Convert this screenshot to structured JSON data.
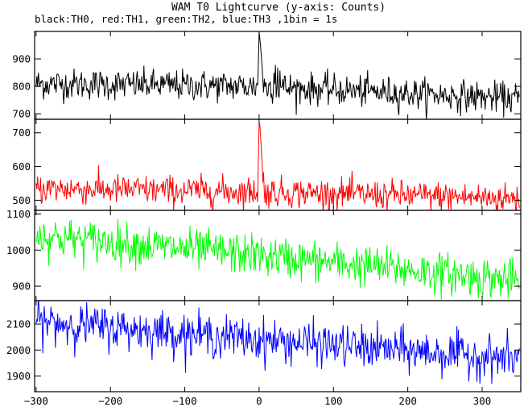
{
  "chart_data": {
    "type": "line",
    "title": "WAM T0 Lightcurve (y-axis: Counts)",
    "subtitle": "black:TH0, red:TH1, green:TH2, blue:TH3 ,1bin = 1s",
    "xlabel": "",
    "ylabel": "",
    "xlim": [
      -302,
      352
    ],
    "x_ticks": [
      -300,
      -200,
      -100,
      0,
      100,
      200,
      300
    ],
    "x_tick_labels": [
      "−300",
      "−200",
      "−100",
      "0",
      "100",
      "200",
      "300"
    ],
    "grid": false,
    "x": {
      "start": -300,
      "end": 350,
      "step": 1
    },
    "panels": [
      {
        "name": "TH0",
        "color": "#000000",
        "ylim": [
          680,
          1000
        ],
        "y_ticks": [
          700,
          800,
          900
        ],
        "baseline": [
          [
            -300,
            810
          ],
          [
            0,
            800
          ],
          [
            350,
            755
          ]
        ],
        "noise_sd": 28,
        "features": [
          {
            "x": -1,
            "y": 880
          },
          {
            "x": 0,
            "y": 1000
          },
          {
            "x": 1,
            "y": 975
          },
          {
            "x": 2,
            "y": 945
          },
          {
            "x": 3,
            "y": 910
          },
          {
            "x": 4,
            "y": 880
          },
          {
            "x": 20,
            "y": 860
          },
          {
            "x": 22,
            "y": 875
          },
          {
            "x": 25,
            "y": 870
          },
          {
            "x": 28,
            "y": 855
          }
        ]
      },
      {
        "name": "TH1",
        "color": "#ff0000",
        "ylim": [
          470,
          740
        ],
        "y_ticks": [
          500,
          600,
          700
        ],
        "baseline": [
          [
            -300,
            535
          ],
          [
            0,
            525
          ],
          [
            350,
            505
          ]
        ],
        "noise_sd": 22,
        "features": [
          {
            "x": -1,
            "y": 620
          },
          {
            "x": 0,
            "y": 735
          },
          {
            "x": 1,
            "y": 720
          },
          {
            "x": 2,
            "y": 690
          },
          {
            "x": 3,
            "y": 650
          },
          {
            "x": 4,
            "y": 610
          },
          {
            "x": 6,
            "y": 585
          }
        ]
      },
      {
        "name": "TH2",
        "color": "#00ff00",
        "ylim": [
          860,
          1110
        ],
        "y_ticks": [
          900,
          1000,
          1100
        ],
        "baseline": [
          [
            -300,
            1040
          ],
          [
            0,
            985
          ],
          [
            350,
            915
          ]
        ],
        "noise_sd": 28,
        "features": []
      },
      {
        "name": "TH3",
        "color": "#0000ff",
        "ylim": [
          1840,
          2190
        ],
        "y_ticks": [
          1900,
          2000,
          2100
        ],
        "baseline": [
          [
            -300,
            2110
          ],
          [
            0,
            2040
          ],
          [
            350,
            1965
          ]
        ],
        "noise_sd": 40,
        "features": []
      }
    ]
  }
}
